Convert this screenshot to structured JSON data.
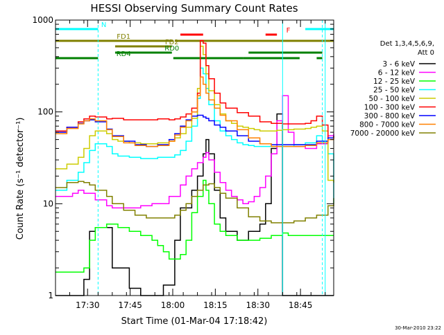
{
  "chart_data": {
    "type": "line",
    "title": "HESSI Observing Summary Count Rates",
    "xlabel": "Start Time (01-Mar-04 17:18:42)",
    "ylabel": "Count Rate (s⁻¹ detector⁻¹)",
    "footer_timestamp": "30-Mar-2010 23:22",
    "y_scale": "log",
    "ylim": [
      1,
      1000
    ],
    "xlim_minutes": [
      0,
      98
    ],
    "y_ticks": [
      1,
      10,
      100,
      1000
    ],
    "y_tick_labels": [
      "1",
      "10",
      "100",
      "1000"
    ],
    "x_ticks_minutes": [
      11.3,
      26.3,
      41.3,
      56.3,
      71.3,
      86.3
    ],
    "x_tick_labels": [
      "17:30",
      "17:45",
      "18:00",
      "18:15",
      "18:30",
      "18:45"
    ],
    "legend_title": [
      "Det 1,3,4,5,6,9,",
      "Att 0"
    ],
    "legend_position": "right",
    "series": [
      {
        "name": "3 - 6 keV",
        "color": "#000000",
        "x": [
          0,
          6,
          10,
          12,
          14,
          20,
          26,
          30,
          36,
          38,
          42,
          44,
          48,
          50,
          52,
          53,
          54,
          56,
          58,
          60,
          64,
          66,
          68,
          72,
          74,
          76,
          78,
          80,
          82,
          84,
          86,
          88,
          90,
          92,
          94,
          96,
          98
        ],
        "y": [
          1,
          1,
          1.5,
          5,
          5.5,
          2,
          1.2,
          1,
          1,
          1.3,
          4,
          9,
          14,
          20,
          35,
          50,
          35,
          14,
          7,
          5,
          4,
          4,
          5,
          6,
          10,
          40,
          95,
          1,
          1,
          1,
          1,
          1,
          1,
          1,
          1,
          1,
          1
        ]
      },
      {
        "name": "6 - 12 keV",
        "color": "#ff00ff",
        "x": [
          0,
          4,
          6,
          8,
          10,
          14,
          18,
          20,
          26,
          30,
          34,
          36,
          40,
          44,
          46,
          48,
          50,
          52,
          53,
          54,
          56,
          58,
          60,
          62,
          64,
          66,
          68,
          70,
          72,
          74,
          76,
          78,
          80,
          82,
          84,
          88,
          92,
          96,
          98
        ],
        "y": [
          12,
          12,
          13,
          14,
          13,
          11,
          9.5,
          9,
          9,
          9.5,
          10,
          10,
          12,
          16,
          20,
          24,
          28,
          32,
          36,
          30,
          22,
          17,
          14,
          12,
          11,
          10,
          10.5,
          12,
          15,
          20,
          35,
          80,
          150,
          60,
          42,
          40,
          45,
          55,
          58
        ]
      },
      {
        "name": "12 - 25 keV",
        "color": "#00ff00",
        "x": [
          0,
          6,
          10,
          12,
          14,
          18,
          22,
          26,
          30,
          34,
          36,
          38,
          40,
          42,
          44,
          46,
          48,
          50,
          52,
          53,
          54,
          56,
          58,
          60,
          64,
          68,
          72,
          76,
          80,
          82,
          84,
          88,
          92,
          96,
          98
        ],
        "y": [
          1.8,
          1.8,
          2,
          4,
          5.5,
          6,
          5.5,
          5,
          4.5,
          4,
          3.5,
          3,
          2.5,
          2.5,
          2.8,
          4,
          8,
          12,
          18,
          14,
          10,
          6,
          5,
          4.5,
          4,
          4,
          4.2,
          4.5,
          4.8,
          4.5,
          4.5,
          4.5,
          4.5,
          4.5,
          4.5
        ]
      },
      {
        "name": "25 - 50 keV",
        "color": "#00ffff",
        "x": [
          0,
          4,
          8,
          10,
          12,
          14,
          18,
          20,
          22,
          26,
          30,
          36,
          42,
          44,
          46,
          48,
          50,
          51,
          52,
          53,
          54,
          56,
          58,
          60,
          62,
          64,
          66,
          68,
          70,
          72,
          74,
          76,
          78,
          80,
          84,
          88,
          92,
          94,
          96,
          98
        ],
        "y": [
          14,
          18,
          22,
          28,
          38,
          45,
          42,
          35,
          33,
          32,
          31,
          32,
          34,
          38,
          48,
          70,
          140,
          300,
          260,
          180,
          120,
          80,
          62,
          55,
          50,
          46,
          44,
          43,
          42,
          42,
          42,
          42,
          42,
          42,
          44,
          46,
          55,
          48,
          35,
          10
        ]
      },
      {
        "name": "50 - 100 keV",
        "color": "#cccc00",
        "x": [
          0,
          4,
          8,
          10,
          12,
          14,
          18,
          20,
          22,
          26,
          30,
          36,
          40,
          42,
          44,
          46,
          48,
          50,
          51,
          52,
          53,
          54,
          56,
          58,
          60,
          62,
          64,
          66,
          68,
          70,
          72,
          74,
          76,
          78,
          80,
          84,
          88,
          90,
          92,
          94,
          96,
          98
        ],
        "y": [
          24,
          27,
          32,
          40,
          55,
          62,
          58,
          50,
          48,
          46,
          45,
          46,
          48,
          52,
          58,
          68,
          85,
          180,
          520,
          420,
          260,
          170,
          120,
          95,
          80,
          75,
          70,
          68,
          66,
          64,
          62,
          62,
          62,
          63,
          64,
          65,
          66,
          68,
          70,
          62,
          18,
          17
        ]
      },
      {
        "name": "100 - 300 keV",
        "color": "#ff0000",
        "x": [
          0,
          4,
          8,
          10,
          12,
          14,
          18,
          20,
          24,
          28,
          32,
          36,
          40,
          42,
          44,
          46,
          48,
          50,
          51,
          52,
          53,
          54,
          56,
          58,
          60,
          64,
          68,
          72,
          76,
          80,
          84,
          88,
          90,
          92,
          94,
          96,
          98
        ],
        "y": [
          62,
          68,
          78,
          84,
          90,
          88,
          84,
          85,
          82,
          82,
          82,
          84,
          82,
          84,
          88,
          95,
          110,
          160,
          600,
          560,
          320,
          230,
          160,
          125,
          110,
          98,
          90,
          78,
          75,
          74,
          74,
          75,
          80,
          90,
          72,
          52,
          55
        ]
      },
      {
        "name": "300 - 800 keV",
        "color": "#0000ff",
        "x": [
          0,
          4,
          8,
          10,
          12,
          14,
          18,
          20,
          24,
          28,
          32,
          36,
          40,
          42,
          44,
          46,
          48,
          50,
          52,
          53,
          54,
          56,
          58,
          60,
          64,
          68,
          72,
          76,
          80,
          84,
          88,
          92,
          96,
          98
        ],
        "y": [
          60,
          68,
          75,
          80,
          82,
          78,
          65,
          55,
          48,
          44,
          42,
          44,
          50,
          58,
          70,
          82,
          90,
          92,
          88,
          85,
          80,
          72,
          68,
          62,
          55,
          48,
          45,
          44,
          44,
          44,
          44,
          48,
          52,
          55
        ]
      },
      {
        "name": "800 - 7000 keV",
        "color": "#ff8000",
        "x": [
          0,
          4,
          8,
          10,
          12,
          14,
          18,
          20,
          24,
          28,
          32,
          36,
          40,
          42,
          44,
          46,
          48,
          50,
          51,
          52,
          53,
          54,
          56,
          58,
          60,
          64,
          68,
          72,
          76,
          80,
          84,
          88,
          92,
          96,
          98
        ],
        "y": [
          58,
          66,
          74,
          80,
          84,
          80,
          64,
          54,
          46,
          43,
          42,
          43,
          48,
          56,
          68,
          80,
          100,
          150,
          240,
          200,
          160,
          135,
          110,
          92,
          80,
          64,
          52,
          45,
          42,
          42,
          42,
          43,
          46,
          50,
          54
        ]
      },
      {
        "name": "7000 - 20000 keV",
        "color": "#808000",
        "x": [
          0,
          4,
          8,
          10,
          12,
          14,
          18,
          20,
          24,
          28,
          32,
          36,
          40,
          42,
          44,
          46,
          48,
          50,
          52,
          54,
          56,
          58,
          60,
          64,
          68,
          72,
          76,
          80,
          84,
          88,
          92,
          96,
          98
        ],
        "y": [
          15,
          17,
          17.5,
          17,
          16,
          14,
          12,
          10,
          8.5,
          7.5,
          7,
          7,
          7,
          7.5,
          8.5,
          10,
          12,
          14,
          16,
          16.5,
          15,
          13,
          11.5,
          9,
          7.2,
          6.5,
          6.2,
          6.2,
          6.5,
          7,
          7.5,
          9.5,
          11.5
        ]
      }
    ],
    "flag_bars": [
      {
        "label": "N",
        "color": "#00ffff",
        "segments_minutes": [
          [
            0,
            15
          ],
          [
            88,
            98
          ]
        ]
      },
      {
        "label": "F",
        "color": "#ff0000",
        "segments_minutes": [
          [
            44,
            52
          ],
          [
            74,
            78
          ]
        ]
      },
      {
        "label": "FD1",
        "color": "#808000",
        "segments_minutes": [
          [
            0,
            41.5
          ],
          [
            42,
            98
          ]
        ]
      },
      {
        "label": "FD2",
        "color": "#808000",
        "segments_minutes": [
          [
            21,
            41
          ]
        ]
      },
      {
        "label": "RD0",
        "color": "#008000",
        "segments_minutes": [
          [
            21,
            41
          ]
        ]
      },
      {
        "label": "RD4",
        "color": "#008000",
        "segments_minutes": [
          [
            0,
            15
          ],
          [
            41.5,
            66
          ],
          [
            66,
            86
          ],
          [
            92,
            94
          ]
        ]
      },
      {
        "label": "",
        "color": "#008000",
        "segments_minutes": [
          [
            68,
            80
          ],
          [
            80,
            94
          ]
        ]
      }
    ],
    "vertical_markers": [
      {
        "color": "#00ffff",
        "style": "dashed",
        "x_minute": 15
      },
      {
        "color": "#00ffff",
        "style": "solid",
        "x_minute": 80
      },
      {
        "color": "#00ffff",
        "style": "dashed",
        "x_minute": 94
      },
      {
        "color": "#00ffff",
        "style": "solid",
        "x_minute": 95
      }
    ]
  }
}
